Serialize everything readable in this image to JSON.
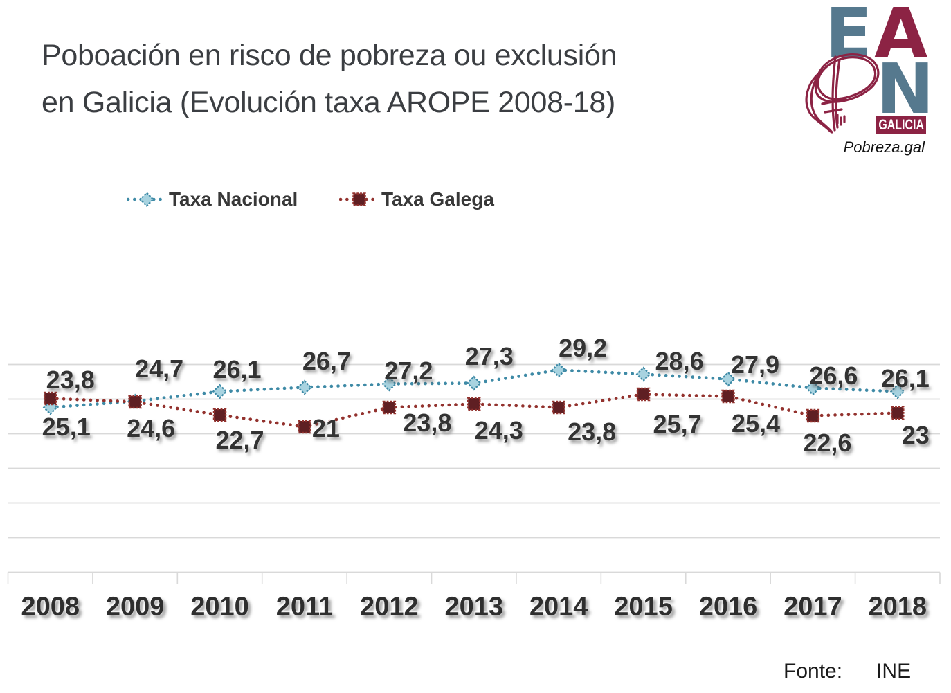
{
  "header": {
    "title_lines": [
      "Poboación en risco de pobreza ou exclusión",
      "en Galicia (Evolución taxa AROPE 2008-18)"
    ]
  },
  "logo": {
    "letter_e": "E",
    "letter_a": "A",
    "letter_p_icon": "scribble-p-icon",
    "letter_n": "N",
    "region_label": "GALICIA",
    "website": "Pobreza.gal",
    "color_blue": "#56798E",
    "color_maroon": "#8C2344"
  },
  "chart_data": {
    "type": "line",
    "title": "Poboación en risco de pobreza ou exclusión en Galicia (Evolución taxa AROPE 2008-18)",
    "categories": [
      "2008",
      "2009",
      "2010",
      "2011",
      "2012",
      "2013",
      "2014",
      "2015",
      "2016",
      "2017",
      "2018"
    ],
    "series": [
      {
        "name": "Taxa Nacional",
        "values": [
          23.8,
          24.7,
          26.1,
          26.7,
          27.2,
          27.3,
          29.2,
          28.6,
          27.9,
          26.6,
          26.1
        ],
        "labels": [
          "23,8",
          "24,7",
          "26,1",
          "26,7",
          "27,2",
          "27,3",
          "29,2",
          "28,6",
          "27,9",
          "26,6",
          "26,1"
        ],
        "color": "#3E8AA6",
        "marker": "diamond",
        "marker_fill": "#A8D3E0",
        "line_style": "dotted",
        "label_position": "above",
        "label_offsets": [
          [
            29,
            -40
          ],
          [
            35,
            -47
          ],
          [
            25,
            -32
          ],
          [
            32,
            -38
          ],
          [
            28,
            -19
          ],
          [
            22,
            -39
          ],
          [
            35,
            -32
          ],
          [
            52,
            -19
          ],
          [
            39,
            -21
          ],
          [
            30,
            -18
          ],
          [
            11,
            -19
          ]
        ]
      },
      {
        "name": "Taxa Galega",
        "values": [
          25.1,
          24.6,
          22.7,
          21,
          23.8,
          24.3,
          23.8,
          25.7,
          25.4,
          22.6,
          23
        ],
        "labels": [
          "25,1",
          "24,6",
          "22,7",
          "21",
          "23,8",
          "24,3",
          "23,8",
          "25,7",
          "25,4",
          "22,6",
          "23"
        ],
        "color": "#93322E",
        "marker": "square",
        "marker_fill": "#5F1F23",
        "line_style": "dotted",
        "label_position": "below",
        "label_offsets": [
          [
            23,
            41
          ],
          [
            23,
            38
          ],
          [
            29,
            36
          ],
          [
            31,
            2
          ],
          [
            55,
            22
          ],
          [
            36,
            38
          ],
          [
            48,
            35
          ],
          [
            49,
            43
          ],
          [
            40,
            39
          ],
          [
            21,
            39
          ],
          [
            26,
            32
          ]
        ]
      }
    ],
    "xlabel": "",
    "ylabel": "",
    "ylim": [
      0,
      30
    ],
    "gridline_step": 5,
    "grid": true,
    "y_tick_labels_visible": false,
    "legend_position": "top"
  },
  "footer": {
    "source_label": "Fonte:",
    "source_value": "INE"
  }
}
